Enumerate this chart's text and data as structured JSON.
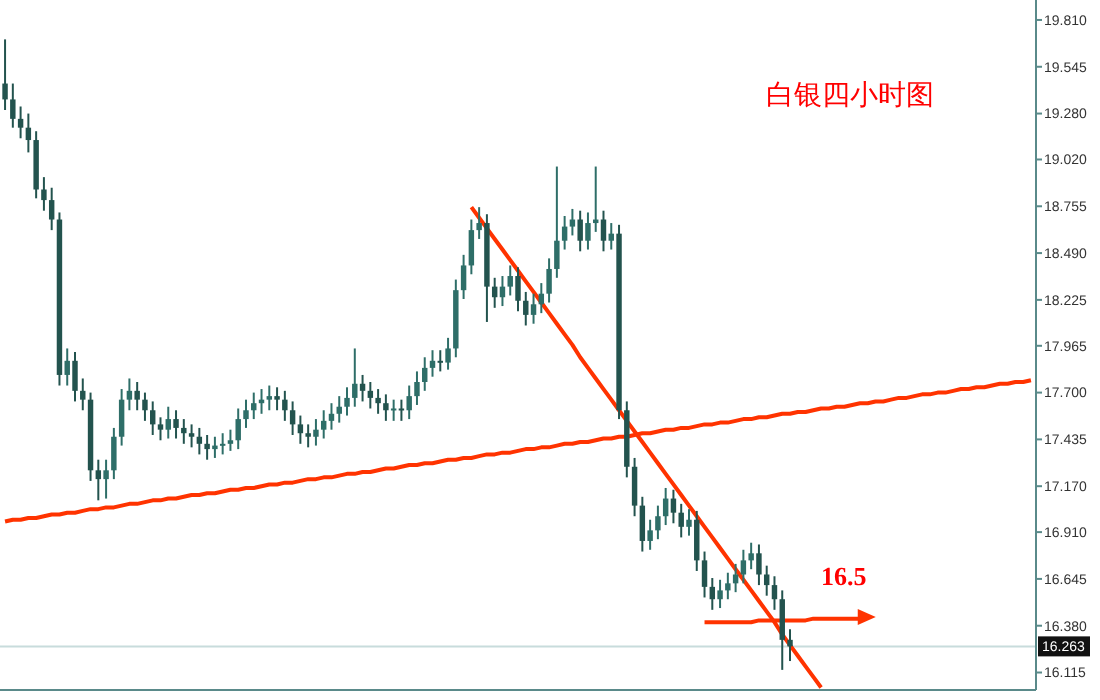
{
  "chart_data": {
    "type": "candlestick",
    "title": "白银四小时图",
    "tick_labels": "y",
    "grid": false,
    "categories": [
      null,
      null,
      null,
      null,
      null,
      null,
      null,
      null,
      null,
      null,
      null,
      null,
      null,
      null,
      null,
      null,
      null,
      null,
      null,
      null,
      null,
      null,
      null,
      null,
      null,
      null,
      null,
      null,
      null,
      null,
      null,
      null,
      null,
      null,
      null,
      null,
      null,
      null,
      null,
      null,
      null,
      null,
      null,
      null,
      null,
      null,
      null,
      null,
      null,
      null,
      null,
      null,
      null,
      null,
      null,
      null,
      null,
      null,
      null,
      null,
      null,
      null,
      null,
      null,
      null,
      null,
      null,
      null,
      null,
      null,
      null,
      null,
      null,
      null,
      null,
      null,
      null,
      null,
      null,
      null,
      null,
      null,
      null,
      null,
      null,
      null,
      null,
      null,
      null,
      null,
      null,
      null,
      null,
      null,
      null,
      null,
      null,
      null,
      null,
      null,
      null,
      null,
      null,
      null,
      null,
      null,
      null,
      null,
      null,
      null,
      null,
      null,
      null,
      null,
      null,
      null,
      null,
      null,
      null,
      null,
      null,
      null,
      null,
      null,
      null,
      null,
      null,
      null,
      null,
      null,
      null,
      null,
      null
    ],
    "ylim": [
      16.016,
      19.923
    ],
    "yticks": [
      {
        "value": 19.81,
        "label": "19.810"
      },
      19.545,
      {
        "value": 19.28,
        "label": "19.280"
      },
      {
        "value": 19.02,
        "label": "19.020"
      },
      18.755,
      {
        "value": 18.49,
        "label": "18.490"
      },
      18.225,
      17.965,
      {
        "value": 17.7,
        "label": "17.700"
      },
      17.435,
      {
        "value": 17.17,
        "label": "17.170"
      },
      {
        "value": 16.91,
        "label": "16.910"
      },
      16.645,
      {
        "value": 16.38,
        "label": "16.380"
      },
      16.115
    ],
    "ref_lines": [
      {
        "axis": "y",
        "value": 16.263,
        "label": "16.263",
        "color": "#c8dcdc"
      }
    ],
    "annotations": [
      "16.5"
    ],
    "series": [
      {
        "colors": [
          "#23534e",
          "#23534e",
          "#23534e",
          "#23534e",
          "#23534e",
          "#23534e",
          "#23534e",
          "#23534e",
          "#2e6e68",
          "#23534e",
          "#23534e",
          "#23534e",
          "#23534e",
          "#2e6e68",
          "#2e6e68",
          "#2e6e68",
          "#2e6e68",
          "#23534e",
          "#23534e",
          "#23534e",
          "#23534e",
          "#2e6e68",
          "#23534e",
          "#23534e",
          "#23534e",
          "#23534e",
          "#23534e",
          "#2e6e68",
          "#2e6e68",
          "#2e6e68",
          "#2e6e68",
          "#2e6e68",
          "#2e6e68",
          "#2e6e68",
          "#2e6e68",
          "#23534e",
          "#23534e",
          "#23534e",
          "#23534e",
          "#23534e",
          "#2e6e68",
          "#2e6e68",
          "#2e6e68",
          "#2e6e68",
          "#2e6e68",
          "#2e6e68",
          "#23534e",
          "#23534e",
          "#23534e",
          "#23534e",
          "#2e6e68",
          "#23534e",
          "#2e6e68",
          "#2e6e68",
          "#2e6e68",
          "#2e6e68",
          "#23534e",
          "#2e6e68",
          "#2e6e68",
          "#2e6e68",
          "#2e6e68",
          "#2e6e68",
          "#23534e",
          "#23534e",
          "#2e6e68",
          "#2e6e68",
          "#23534e",
          "#23534e",
          "#2e6e68",
          "#2e6e68",
          "#2e6e68",
          "#2e6e68",
          "#2e6e68",
          "#2e6e68",
          "#23534e",
          "#2e6e68",
          "#2e6e68",
          "#23534e",
          "#2e6e68",
          "#23534e",
          "#23534e",
          "#23534e",
          "#23534e",
          "#2e6e68",
          "#2e6e68",
          "#2e6e68",
          "#23534e",
          "#23534e",
          "#2e6e68",
          "#23534e",
          "#23534e",
          "#23534e",
          "#2e6e68",
          "#2e6e68",
          "#2e6e68",
          "#2e6e68",
          "#2e6e68",
          "#23534e",
          "#23534e",
          "#23534e",
          "#23534e",
          "#23534e",
          null,
          null,
          null,
          null,
          null,
          null,
          null,
          null,
          null,
          null,
          null,
          null,
          null,
          null,
          null,
          null,
          null,
          null,
          null,
          null,
          null,
          null,
          null,
          null,
          null,
          null,
          null,
          null,
          null,
          null,
          null
        ],
        "ohlc": [
          [
            19.45,
            19.7,
            19.3,
            19.36
          ],
          [
            19.36,
            19.45,
            19.2,
            19.25
          ],
          [
            19.25,
            19.32,
            19.14,
            19.2
          ],
          [
            19.2,
            19.28,
            19.06,
            19.13
          ],
          [
            19.13,
            19.18,
            18.8,
            18.85
          ],
          [
            18.85,
            18.92,
            18.73,
            18.79
          ],
          [
            18.79,
            18.86,
            18.62,
            18.68
          ],
          [
            18.68,
            18.72,
            17.74,
            17.8
          ],
          [
            17.8,
            17.95,
            17.74,
            17.88
          ],
          [
            17.88,
            17.93,
            17.65,
            17.71
          ],
          [
            17.71,
            17.78,
            17.6,
            17.66
          ],
          [
            17.66,
            17.7,
            17.2,
            17.26
          ],
          [
            17.26,
            17.32,
            17.09,
            17.21
          ],
          [
            17.21,
            17.32,
            17.1,
            17.26
          ],
          [
            17.26,
            17.5,
            17.21,
            17.45
          ],
          [
            17.45,
            17.72,
            17.4,
            17.66
          ],
          [
            17.66,
            17.78,
            17.6,
            17.71
          ],
          [
            17.71,
            17.76,
            17.6,
            17.66
          ],
          [
            17.66,
            17.7,
            17.54,
            17.6
          ],
          [
            17.6,
            17.65,
            17.46,
            17.52
          ],
          [
            17.52,
            17.56,
            17.43,
            17.49
          ],
          [
            17.49,
            17.62,
            17.44,
            17.55
          ],
          [
            17.55,
            17.6,
            17.44,
            17.5
          ],
          [
            17.5,
            17.55,
            17.41,
            17.47
          ],
          [
            17.47,
            17.52,
            17.39,
            17.45
          ],
          [
            17.45,
            17.5,
            17.35,
            17.41
          ],
          [
            17.41,
            17.46,
            17.32,
            17.38
          ],
          [
            17.38,
            17.45,
            17.33,
            17.4
          ],
          [
            17.4,
            17.47,
            17.35,
            17.41
          ],
          [
            17.41,
            17.49,
            17.37,
            17.43
          ],
          [
            17.43,
            17.61,
            17.38,
            17.55
          ],
          [
            17.55,
            17.66,
            17.5,
            17.6
          ],
          [
            17.6,
            17.7,
            17.55,
            17.64
          ],
          [
            17.64,
            17.72,
            17.58,
            17.66
          ],
          [
            17.66,
            17.74,
            17.6,
            17.68
          ],
          [
            17.68,
            17.73,
            17.6,
            17.66
          ],
          [
            17.66,
            17.71,
            17.54,
            17.6
          ],
          [
            17.6,
            17.65,
            17.46,
            17.52
          ],
          [
            17.52,
            17.57,
            17.41,
            17.47
          ],
          [
            17.47,
            17.52,
            17.39,
            17.45
          ],
          [
            17.45,
            17.55,
            17.4,
            17.49
          ],
          [
            17.49,
            17.6,
            17.44,
            17.54
          ],
          [
            17.54,
            17.64,
            17.49,
            17.58
          ],
          [
            17.58,
            17.68,
            17.53,
            17.62
          ],
          [
            17.62,
            17.73,
            17.57,
            17.67
          ],
          [
            17.67,
            17.95,
            17.62,
            17.75
          ],
          [
            17.75,
            17.8,
            17.65,
            17.71
          ],
          [
            17.71,
            17.76,
            17.61,
            17.67
          ],
          [
            17.67,
            17.72,
            17.58,
            17.64
          ],
          [
            17.64,
            17.69,
            17.54,
            17.6
          ],
          [
            17.6,
            17.66,
            17.54,
            17.61
          ],
          [
            17.61,
            17.66,
            17.54,
            17.6
          ],
          [
            17.6,
            17.74,
            17.55,
            17.68
          ],
          [
            17.68,
            17.82,
            17.63,
            17.76
          ],
          [
            17.76,
            17.9,
            17.71,
            17.84
          ],
          [
            17.84,
            17.94,
            17.79,
            17.88
          ],
          [
            17.88,
            17.94,
            17.82,
            17.87
          ],
          [
            17.87,
            18.01,
            17.83,
            17.95
          ],
          [
            17.95,
            18.34,
            17.9,
            18.28
          ],
          [
            18.28,
            18.48,
            18.23,
            18.42
          ],
          [
            18.42,
            18.68,
            18.37,
            18.62
          ],
          [
            18.62,
            18.75,
            18.57,
            18.66
          ],
          [
            18.66,
            18.71,
            18.1,
            18.3
          ],
          [
            18.3,
            18.35,
            18.18,
            18.24
          ],
          [
            18.24,
            18.36,
            18.19,
            18.3
          ],
          [
            18.3,
            18.42,
            18.25,
            18.36
          ],
          [
            18.36,
            18.41,
            18.16,
            18.22
          ],
          [
            18.22,
            18.27,
            18.08,
            18.14
          ],
          [
            18.14,
            18.26,
            18.09,
            18.2
          ],
          [
            18.2,
            18.32,
            18.15,
            18.26
          ],
          [
            18.26,
            18.46,
            18.21,
            18.4
          ],
          [
            18.4,
            18.98,
            18.35,
            18.56
          ],
          [
            18.56,
            18.7,
            18.51,
            18.64
          ],
          [
            18.64,
            18.74,
            18.59,
            18.68
          ],
          [
            18.68,
            18.73,
            18.5,
            18.56
          ],
          [
            18.56,
            18.72,
            18.51,
            18.66
          ],
          [
            18.66,
            18.98,
            18.61,
            18.68
          ],
          [
            18.68,
            18.73,
            18.5,
            18.56
          ],
          [
            18.56,
            18.66,
            18.51,
            18.6
          ],
          [
            18.6,
            18.65,
            17.55,
            17.6
          ],
          [
            17.6,
            17.65,
            17.22,
            17.28
          ],
          [
            17.28,
            17.33,
            17.0,
            17.06
          ],
          [
            17.06,
            17.11,
            16.8,
            16.86
          ],
          [
            16.86,
            16.98,
            16.81,
            16.92
          ],
          [
            16.92,
            17.06,
            16.87,
            17.0
          ],
          [
            17.0,
            17.16,
            16.95,
            17.1
          ],
          [
            17.1,
            17.15,
            16.96,
            17.02
          ],
          [
            17.02,
            17.07,
            16.88,
            16.94
          ],
          [
            16.94,
            17.04,
            16.89,
            16.98
          ],
          [
            16.98,
            17.03,
            16.69,
            16.75
          ],
          [
            16.75,
            16.8,
            16.54,
            16.6
          ],
          [
            16.6,
            16.65,
            16.47,
            16.53
          ],
          [
            16.53,
            16.64,
            16.48,
            16.58
          ],
          [
            16.58,
            16.68,
            16.53,
            16.62
          ],
          [
            16.62,
            16.73,
            16.57,
            16.67
          ],
          [
            16.67,
            16.81,
            16.62,
            16.75
          ],
          [
            16.75,
            16.85,
            16.7,
            16.79
          ],
          [
            16.79,
            16.84,
            16.61,
            16.67
          ],
          [
            16.67,
            16.72,
            16.55,
            16.61
          ],
          [
            16.61,
            16.66,
            16.47,
            16.53
          ],
          [
            16.53,
            16.58,
            16.13,
            16.3
          ],
          [
            16.3,
            16.36,
            16.18,
            16.263
          ],
          null,
          null,
          null,
          null,
          null,
          null,
          null,
          null,
          null,
          null,
          null,
          null,
          null,
          null,
          null,
          null,
          null,
          null,
          null,
          null,
          null,
          null,
          null,
          null,
          null,
          null,
          null,
          null,
          null,
          null,
          null
        ]
      },
      {
        "type": "line",
        "color": "#ff3300",
        "values": [
          16.97,
          16.98,
          16.98,
          16.99,
          16.99,
          17.0,
          17.01,
          17.01,
          17.02,
          17.02,
          17.03,
          17.04,
          17.04,
          17.05,
          17.05,
          17.06,
          17.07,
          17.07,
          17.08,
          17.09,
          17.09,
          17.1,
          17.1,
          17.11,
          17.12,
          17.12,
          17.13,
          17.13,
          17.14,
          17.15,
          17.15,
          17.16,
          17.16,
          17.17,
          17.18,
          17.18,
          17.19,
          17.19,
          17.2,
          17.21,
          17.21,
          17.22,
          17.22,
          17.23,
          17.24,
          17.24,
          17.25,
          17.25,
          17.26,
          17.27,
          17.27,
          17.28,
          17.29,
          17.29,
          17.3,
          17.3,
          17.31,
          17.32,
          17.32,
          17.33,
          17.33,
          17.34,
          17.35,
          17.35,
          17.36,
          17.36,
          17.37,
          17.38,
          17.38,
          17.39,
          17.39,
          17.4,
          17.41,
          17.41,
          17.42,
          17.42,
          17.43,
          17.44,
          17.44,
          17.45,
          17.45,
          17.46,
          17.47,
          17.47,
          17.48,
          17.49,
          17.49,
          17.5,
          17.5,
          17.51,
          17.52,
          17.52,
          17.53,
          17.53,
          17.54,
          17.55,
          17.55,
          17.56,
          17.56,
          17.57,
          17.58,
          17.58,
          17.59,
          17.59,
          17.6,
          17.61,
          17.61,
          17.62,
          17.62,
          17.63,
          17.64,
          17.64,
          17.65,
          17.65,
          17.66,
          17.67,
          17.67,
          17.68,
          17.69,
          17.69,
          17.7,
          17.7,
          17.71,
          17.72,
          17.72,
          17.73,
          17.73,
          17.74,
          17.75,
          17.75,
          17.76,
          17.76,
          17.77
        ]
      },
      {
        "type": "line",
        "color": "#ff3300",
        "values": [
          null,
          null,
          null,
          null,
          null,
          null,
          null,
          null,
          null,
          null,
          null,
          null,
          null,
          null,
          null,
          null,
          null,
          null,
          null,
          null,
          null,
          null,
          null,
          null,
          null,
          null,
          null,
          null,
          null,
          null,
          null,
          null,
          null,
          null,
          null,
          null,
          null,
          null,
          null,
          null,
          null,
          null,
          null,
          null,
          null,
          null,
          null,
          null,
          null,
          null,
          null,
          null,
          null,
          null,
          null,
          null,
          null,
          null,
          null,
          null,
          18.75,
          18.69,
          18.63,
          18.57,
          18.51,
          18.45,
          18.39,
          18.33,
          18.27,
          18.21,
          18.15,
          18.09,
          18.03,
          17.97,
          17.9,
          17.84,
          17.78,
          17.72,
          17.66,
          17.6,
          17.54,
          17.48,
          17.42,
          17.36,
          17.3,
          17.24,
          17.18,
          17.12,
          17.06,
          17.0,
          16.94,
          16.88,
          16.82,
          16.76,
          16.7,
          16.64,
          16.58,
          16.52,
          16.46,
          16.4,
          16.33,
          16.27,
          16.21,
          16.15,
          16.09,
          16.03,
          null,
          null,
          null,
          null,
          null,
          null,
          null,
          null,
          null,
          null,
          null,
          null,
          null,
          null,
          null,
          null,
          null,
          null,
          null,
          null,
          null,
          null,
          null,
          null,
          null,
          null,
          null
        ]
      },
      {
        "type": "line",
        "color": "#ff3300",
        "values": [
          null,
          null,
          null,
          null,
          null,
          null,
          null,
          null,
          null,
          null,
          null,
          null,
          null,
          null,
          null,
          null,
          null,
          null,
          null,
          null,
          null,
          null,
          null,
          null,
          null,
          null,
          null,
          null,
          null,
          null,
          null,
          null,
          null,
          null,
          null,
          null,
          null,
          null,
          null,
          null,
          null,
          null,
          null,
          null,
          null,
          null,
          null,
          null,
          null,
          null,
          null,
          null,
          null,
          null,
          null,
          null,
          null,
          null,
          null,
          null,
          null,
          null,
          null,
          null,
          null,
          null,
          null,
          null,
          null,
          null,
          null,
          null,
          null,
          null,
          null,
          null,
          null,
          null,
          null,
          null,
          null,
          null,
          null,
          null,
          null,
          null,
          null,
          null,
          null,
          null,
          16.4,
          16.4,
          16.4,
          16.4,
          16.4,
          16.4,
          16.4,
          16.41,
          16.41,
          16.41,
          16.41,
          16.41,
          16.41,
          16.41,
          16.42,
          16.42,
          16.42,
          16.42,
          16.42,
          16.42,
          16.42,
          16.43,
          null,
          null,
          null,
          null,
          null,
          null,
          null,
          null,
          null,
          null,
          null,
          null,
          null,
          null,
          null,
          null,
          null,
          null,
          null,
          null,
          null
        ]
      }
    ]
  }
}
